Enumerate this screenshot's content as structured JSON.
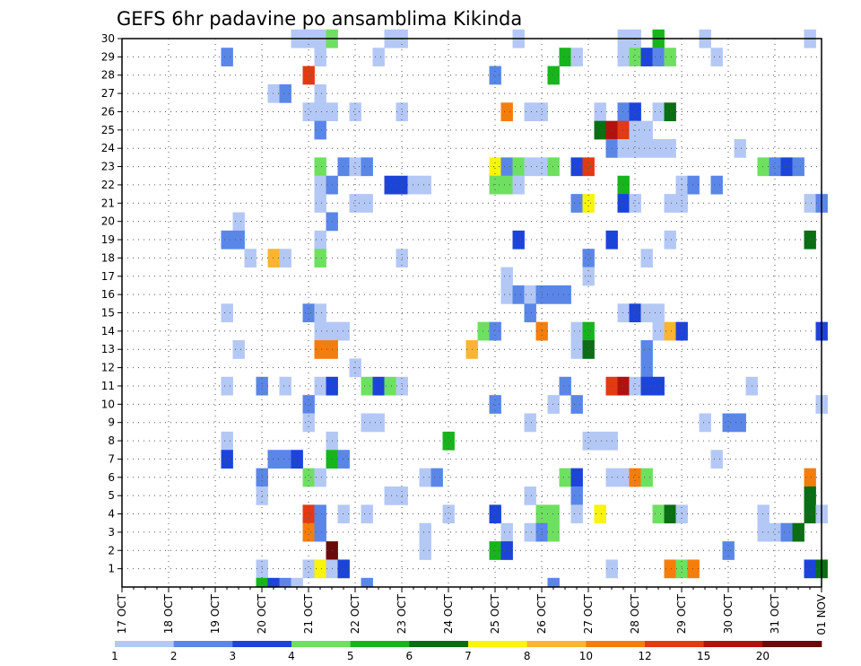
{
  "chart_data": {
    "type": "heatmap",
    "title": "GEFS 6hr padavine po ansamblima Kikinda",
    "x_ticks": [
      "17 OCT",
      "18 OCT",
      "19 OCT",
      "20 OCT",
      "21 OCT",
      "22 OCT",
      "23 OCT",
      "24 OCT",
      "25 OCT",
      "26 OCT",
      "27 OCT",
      "28 OCT",
      "29 OCT",
      "30 OCT",
      "31 OCT",
      "01 NOV"
    ],
    "y_ticks": [
      "1",
      "2",
      "3",
      "4",
      "5",
      "6",
      "7",
      "8",
      "9",
      "10",
      "11",
      "12",
      "13",
      "14",
      "15",
      "16",
      "17",
      "18",
      "19",
      "20",
      "21",
      "22",
      "23",
      "24",
      "25",
      "26",
      "27",
      "28",
      "29",
      "30"
    ],
    "xlim": [
      0,
      60
    ],
    "ylim": [
      0,
      30
    ],
    "grid": true,
    "colorbar": {
      "labels": [
        "1",
        "2",
        "3",
        "4",
        "5",
        "6",
        "7",
        "8",
        "10",
        "12",
        "15",
        "20"
      ],
      "colors": [
        "#b4c8f5",
        "#5a86e8",
        "#1c44d9",
        "#6ee060",
        "#17b51c",
        "#0a6e14",
        "#f8f40a",
        "#fdb432",
        "#f57d0c",
        "#e23a12",
        "#b0120e",
        "#6a0a0a"
      ]
    },
    "cells": [
      [
        15,
        30,
        1
      ],
      [
        16,
        30,
        1
      ],
      [
        17,
        30,
        1
      ],
      [
        18,
        30,
        4
      ],
      [
        23,
        30,
        1
      ],
      [
        24,
        30,
        1
      ],
      [
        34,
        30,
        1
      ],
      [
        43,
        30,
        1
      ],
      [
        44,
        30,
        1
      ],
      [
        46,
        30,
        5
      ],
      [
        50,
        30,
        1
      ],
      [
        59,
        30,
        1
      ],
      [
        9,
        29,
        2
      ],
      [
        17,
        29,
        1
      ],
      [
        22,
        29,
        1
      ],
      [
        38,
        29,
        5
      ],
      [
        39,
        29,
        1
      ],
      [
        43,
        29,
        1
      ],
      [
        44,
        29,
        4
      ],
      [
        45,
        29,
        3
      ],
      [
        46,
        29,
        2
      ],
      [
        47,
        29,
        4
      ],
      [
        51,
        29,
        1
      ],
      [
        16,
        28,
        10
      ],
      [
        32,
        28,
        2
      ],
      [
        37,
        28,
        5
      ],
      [
        13,
        27,
        1
      ],
      [
        14,
        27,
        2
      ],
      [
        17,
        27,
        1
      ],
      [
        16,
        26,
        1
      ],
      [
        17,
        26,
        1
      ],
      [
        18,
        26,
        1
      ],
      [
        20,
        26,
        1
      ],
      [
        24,
        26,
        1
      ],
      [
        33,
        26,
        9
      ],
      [
        35,
        26,
        1
      ],
      [
        36,
        26,
        1
      ],
      [
        41,
        26,
        1
      ],
      [
        43,
        26,
        2
      ],
      [
        44,
        26,
        3
      ],
      [
        46,
        26,
        1
      ],
      [
        47,
        26,
        6
      ],
      [
        17,
        25,
        2
      ],
      [
        41,
        25,
        6
      ],
      [
        42,
        25,
        11
      ],
      [
        43,
        25,
        10
      ],
      [
        44,
        25,
        1
      ],
      [
        45,
        25,
        1
      ],
      [
        42,
        24,
        2
      ],
      [
        43,
        24,
        1
      ],
      [
        44,
        24,
        1
      ],
      [
        45,
        24,
        1
      ],
      [
        46,
        24,
        1
      ],
      [
        47,
        24,
        1
      ],
      [
        53,
        24,
        1
      ],
      [
        17,
        23,
        4
      ],
      [
        19,
        23,
        2
      ],
      [
        20,
        23,
        1
      ],
      [
        21,
        23,
        2
      ],
      [
        32,
        23,
        7
      ],
      [
        33,
        23,
        2
      ],
      [
        34,
        23,
        4
      ],
      [
        35,
        23,
        1
      ],
      [
        36,
        23,
        1
      ],
      [
        37,
        23,
        4
      ],
      [
        39,
        23,
        3
      ],
      [
        40,
        23,
        10
      ],
      [
        55,
        23,
        4
      ],
      [
        56,
        23,
        2
      ],
      [
        57,
        23,
        3
      ],
      [
        58,
        23,
        2
      ],
      [
        17,
        22,
        1
      ],
      [
        18,
        22,
        2
      ],
      [
        23,
        22,
        3
      ],
      [
        24,
        22,
        3
      ],
      [
        25,
        22,
        1
      ],
      [
        26,
        22,
        1
      ],
      [
        32,
        22,
        4
      ],
      [
        33,
        22,
        4
      ],
      [
        34,
        22,
        1
      ],
      [
        43,
        22,
        5
      ],
      [
        48,
        22,
        1
      ],
      [
        49,
        22,
        2
      ],
      [
        51,
        22,
        2
      ],
      [
        17,
        21,
        1
      ],
      [
        20,
        21,
        1
      ],
      [
        21,
        21,
        1
      ],
      [
        39,
        21,
        2
      ],
      [
        40,
        21,
        7
      ],
      [
        43,
        21,
        3
      ],
      [
        44,
        21,
        1
      ],
      [
        47,
        21,
        1
      ],
      [
        48,
        21,
        1
      ],
      [
        59,
        21,
        1
      ],
      [
        60,
        21,
        2
      ],
      [
        10,
        20,
        1
      ],
      [
        18,
        20,
        2
      ],
      [
        9,
        19,
        2
      ],
      [
        10,
        19,
        2
      ],
      [
        17,
        19,
        1
      ],
      [
        34,
        19,
        3
      ],
      [
        42,
        19,
        3
      ],
      [
        47,
        19,
        1
      ],
      [
        59,
        19,
        6
      ],
      [
        11,
        18,
        1
      ],
      [
        13,
        18,
        8
      ],
      [
        14,
        18,
        1
      ],
      [
        17,
        18,
        4
      ],
      [
        24,
        18,
        1
      ],
      [
        40,
        18,
        2
      ],
      [
        45,
        18,
        1
      ],
      [
        33,
        17,
        1
      ],
      [
        40,
        17,
        1
      ],
      [
        33,
        16,
        1
      ],
      [
        34,
        16,
        2
      ],
      [
        35,
        16,
        1
      ],
      [
        36,
        16,
        2
      ],
      [
        37,
        16,
        2
      ],
      [
        38,
        16,
        2
      ],
      [
        9,
        15,
        1
      ],
      [
        16,
        15,
        2
      ],
      [
        17,
        15,
        1
      ],
      [
        35,
        15,
        2
      ],
      [
        43,
        15,
        1
      ],
      [
        44,
        15,
        3
      ],
      [
        45,
        15,
        1
      ],
      [
        46,
        15,
        1
      ],
      [
        17,
        14,
        1
      ],
      [
        18,
        14,
        1
      ],
      [
        19,
        14,
        1
      ],
      [
        31,
        14,
        4
      ],
      [
        32,
        14,
        2
      ],
      [
        36,
        14,
        9
      ],
      [
        39,
        14,
        1
      ],
      [
        40,
        14,
        5
      ],
      [
        46,
        14,
        1
      ],
      [
        47,
        14,
        8
      ],
      [
        48,
        14,
        3
      ],
      [
        60,
        14,
        3
      ],
      [
        10,
        13,
        1
      ],
      [
        17,
        13,
        9
      ],
      [
        18,
        13,
        9
      ],
      [
        30,
        13,
        8
      ],
      [
        39,
        13,
        1
      ],
      [
        40,
        13,
        6
      ],
      [
        45,
        13,
        2
      ],
      [
        20,
        12,
        1
      ],
      [
        45,
        12,
        2
      ],
      [
        9,
        11,
        1
      ],
      [
        12,
        11,
        2
      ],
      [
        14,
        11,
        1
      ],
      [
        17,
        11,
        1
      ],
      [
        18,
        11,
        3
      ],
      [
        21,
        11,
        4
      ],
      [
        22,
        11,
        3
      ],
      [
        23,
        11,
        4
      ],
      [
        24,
        11,
        1
      ],
      [
        38,
        11,
        2
      ],
      [
        42,
        11,
        10
      ],
      [
        43,
        11,
        11
      ],
      [
        44,
        11,
        1
      ],
      [
        45,
        11,
        3
      ],
      [
        46,
        11,
        3
      ],
      [
        54,
        11,
        1
      ],
      [
        16,
        10,
        2
      ],
      [
        32,
        10,
        2
      ],
      [
        37,
        10,
        1
      ],
      [
        39,
        10,
        2
      ],
      [
        60,
        10,
        1
      ],
      [
        16,
        9,
        1
      ],
      [
        21,
        9,
        1
      ],
      [
        22,
        9,
        1
      ],
      [
        35,
        9,
        1
      ],
      [
        50,
        9,
        1
      ],
      [
        52,
        9,
        2
      ],
      [
        53,
        9,
        2
      ],
      [
        9,
        8,
        1
      ],
      [
        18,
        8,
        1
      ],
      [
        28,
        8,
        5
      ],
      [
        40,
        8,
        1
      ],
      [
        41,
        8,
        1
      ],
      [
        42,
        8,
        1
      ],
      [
        9,
        7,
        3
      ],
      [
        13,
        7,
        2
      ],
      [
        14,
        7,
        2
      ],
      [
        15,
        7,
        3
      ],
      [
        18,
        7,
        5
      ],
      [
        19,
        7,
        2
      ],
      [
        51,
        7,
        1
      ],
      [
        12,
        6,
        2
      ],
      [
        16,
        6,
        4
      ],
      [
        17,
        6,
        1
      ],
      [
        26,
        6,
        1
      ],
      [
        27,
        6,
        2
      ],
      [
        38,
        6,
        4
      ],
      [
        39,
        6,
        3
      ],
      [
        42,
        6,
        1
      ],
      [
        43,
        6,
        1
      ],
      [
        44,
        6,
        9
      ],
      [
        45,
        6,
        4
      ],
      [
        59,
        6,
        9
      ],
      [
        12,
        5,
        1
      ],
      [
        23,
        5,
        1
      ],
      [
        24,
        5,
        1
      ],
      [
        35,
        5,
        1
      ],
      [
        39,
        5,
        2
      ],
      [
        59,
        5,
        6
      ],
      [
        16,
        4,
        10
      ],
      [
        17,
        4,
        2
      ],
      [
        19,
        4,
        1
      ],
      [
        21,
        4,
        1
      ],
      [
        28,
        4,
        1
      ],
      [
        32,
        4,
        3
      ],
      [
        36,
        4,
        4
      ],
      [
        37,
        4,
        4
      ],
      [
        39,
        4,
        1
      ],
      [
        41,
        4,
        7
      ],
      [
        46,
        4,
        4
      ],
      [
        47,
        4,
        6
      ],
      [
        48,
        4,
        1
      ],
      [
        55,
        4,
        1
      ],
      [
        59,
        4,
        6
      ],
      [
        60,
        4,
        1
      ],
      [
        16,
        3,
        9
      ],
      [
        17,
        3,
        2
      ],
      [
        26,
        3,
        1
      ],
      [
        33,
        3,
        1
      ],
      [
        35,
        3,
        1
      ],
      [
        36,
        3,
        2
      ],
      [
        37,
        3,
        4
      ],
      [
        55,
        3,
        1
      ],
      [
        56,
        3,
        1
      ],
      [
        57,
        3,
        2
      ],
      [
        58,
        3,
        6
      ],
      [
        18,
        2,
        12
      ],
      [
        26,
        2,
        1
      ],
      [
        32,
        2,
        5
      ],
      [
        33,
        2,
        3
      ],
      [
        52,
        2,
        2
      ],
      [
        12,
        1,
        1
      ],
      [
        16,
        1,
        1
      ],
      [
        17,
        1,
        7
      ],
      [
        18,
        1,
        1
      ],
      [
        19,
        1,
        3
      ],
      [
        42,
        1,
        1
      ],
      [
        47,
        1,
        9
      ],
      [
        48,
        1,
        4
      ],
      [
        49,
        1,
        9
      ],
      [
        59,
        1,
        3
      ],
      [
        60,
        1,
        6
      ],
      [
        12,
        0,
        5
      ],
      [
        13,
        0,
        3
      ],
      [
        14,
        0,
        2
      ],
      [
        15,
        0,
        1
      ],
      [
        21,
        0,
        2
      ],
      [
        37,
        0,
        2
      ]
    ]
  }
}
